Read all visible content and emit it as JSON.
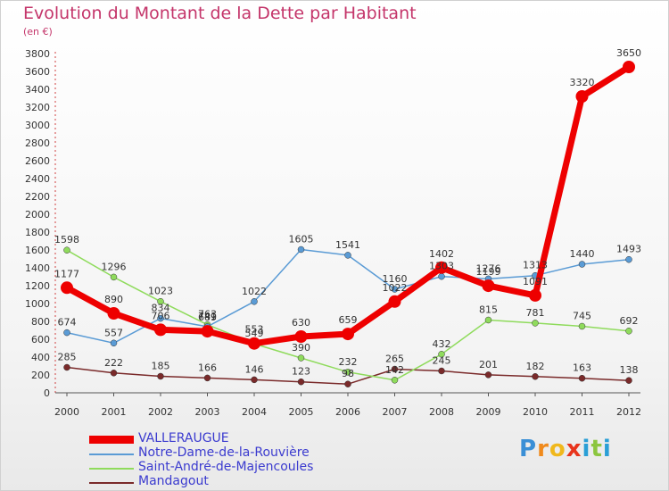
{
  "title": "Evolution du Montant de la Dette par Habitant",
  "subtitle": "(en €)",
  "logo": {
    "letters": [
      "P",
      "r",
      "o",
      "x",
      "i",
      "t",
      "i"
    ],
    "colors": [
      "#3a8fd6",
      "#f08a1c",
      "#f0b81c",
      "#e8341c",
      "#2a9fd6",
      "#8cc63f",
      "#2a9fd6"
    ]
  },
  "chart_data": {
    "type": "line",
    "x": [
      "2000",
      "2001",
      "2002",
      "2003",
      "2004",
      "2005",
      "2006",
      "2007",
      "2008",
      "2009",
      "2010",
      "2011",
      "2012"
    ],
    "ylim": [
      0,
      3800
    ],
    "yticks": [
      0,
      200,
      400,
      600,
      800,
      1000,
      1200,
      1400,
      1600,
      1800,
      2000,
      2200,
      2400,
      2600,
      2800,
      3000,
      3200,
      3400,
      3600,
      3800
    ],
    "grid": false,
    "legend_position": "bottom-left",
    "series": [
      {
        "name": "VALLERAUGUE",
        "color": "#ee0000",
        "width": 7,
        "marker": 7,
        "values": [
          1177,
          890,
          706,
          689,
          553,
          630,
          659,
          1022,
          1402,
          1199,
          1091,
          3320,
          3650
        ],
        "labels": [
          "1177",
          "890",
          "706",
          "689",
          "553",
          "630",
          "659",
          "1022",
          "1402",
          "1199",
          "1091",
          "3320",
          "3650"
        ]
      },
      {
        "name": "Notre-Dame-de-la-Rouvière",
        "color": "#5a9bd5",
        "width": 1.5,
        "marker": 3.5,
        "values": [
          674,
          557,
          834,
          741,
          1022,
          1605,
          1541,
          1160,
          1303,
          1276,
          1313,
          1440,
          1493
        ],
        "labels": [
          "674",
          "557",
          "834",
          "741",
          "1022",
          "1605",
          "1541",
          "1160",
          "1303",
          "1276",
          "1313",
          "1440",
          "1493"
        ]
      },
      {
        "name": "Saint-André-de-Majencoules",
        "color": "#8fdb5c",
        "width": 1.5,
        "marker": 3.5,
        "values": [
          1598,
          1296,
          1023,
          763,
          549,
          390,
          232,
          142,
          432,
          815,
          781,
          745,
          692
        ],
        "labels": [
          "1598",
          "1296",
          "1023",
          "763",
          "549",
          "390",
          "232",
          "142",
          "432",
          "815",
          "781",
          "745",
          "692"
        ]
      },
      {
        "name": "Mandagout",
        "color": "#7a2a2a",
        "width": 1.5,
        "marker": 3.5,
        "values": [
          285,
          222,
          185,
          166,
          146,
          123,
          98,
          265,
          245,
          201,
          182,
          163,
          138
        ],
        "labels": [
          "285",
          "222",
          "185",
          "166",
          "146",
          "123",
          "98",
          "265",
          "245",
          "201",
          "182",
          "163",
          "138"
        ]
      }
    ]
  }
}
